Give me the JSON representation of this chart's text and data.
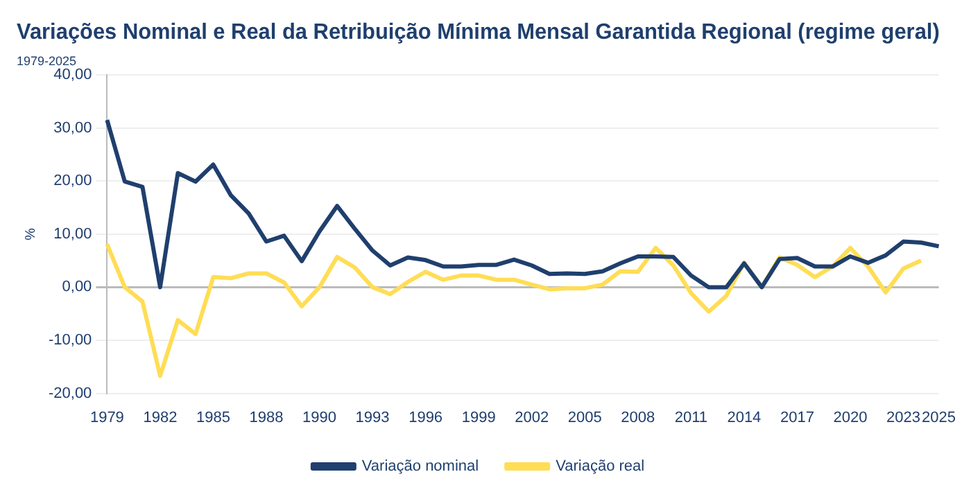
{
  "chart_data": {
    "type": "line",
    "title": "Variações Nominal e Real da Retribuição Mínima Mensal Garantida Regional (regime geral)",
    "subtitle": "1979-2025",
    "ylabel": "%",
    "categories": [
      "1979",
      null,
      null,
      "1982",
      null,
      null,
      "1985",
      null,
      null,
      "1988",
      null,
      null,
      "1990",
      null,
      null,
      "1993",
      null,
      null,
      "1996",
      null,
      null,
      "1999",
      null,
      null,
      "2002",
      null,
      null,
      "2005",
      null,
      null,
      "2008",
      null,
      null,
      "2011",
      null,
      null,
      "2014",
      null,
      null,
      "2017",
      null,
      null,
      "2020",
      null,
      null,
      "2023",
      null,
      "2025"
    ],
    "series": [
      {
        "name": "Variação nominal",
        "color": "#1f3f6e",
        "values": [
          31.5,
          19.9,
          18.9,
          0,
          21.5,
          19.9,
          23.1,
          17.3,
          13.9,
          8.6,
          9.7,
          4.9,
          10.5,
          15.3,
          11,
          6.9,
          4.1,
          5.6,
          5.1,
          3.9,
          3.9,
          4.2,
          4.2,
          5.2,
          4.1,
          2.5,
          2.6,
          2.5,
          3,
          4.5,
          5.8,
          5.8,
          5.7,
          2.2,
          0,
          0,
          4.5,
          0,
          5.3,
          5.5,
          3.9,
          3.9,
          5.8,
          4.6,
          6,
          8.6,
          8.4,
          7.7
        ]
      },
      {
        "name": "Variação real",
        "color": "#ffdd55",
        "values": [
          8.1,
          0,
          -2.7,
          -16.7,
          -6.2,
          -8.8,
          1.9,
          1.7,
          2.6,
          2.6,
          0.9,
          -3.6,
          0,
          5.7,
          3.7,
          0,
          -1.3,
          1,
          2.9,
          1.4,
          2.2,
          2.2,
          1.4,
          1.4,
          0.5,
          -0.4,
          -0.2,
          -0.2,
          0.5,
          3,
          2.9,
          7.4,
          4.1,
          -1.1,
          -4.6,
          -1.6,
          4.6,
          0,
          5.6,
          4.2,
          1.9,
          3.9,
          7.4,
          3.9,
          -1,
          3.5,
          5,
          null
        ]
      }
    ],
    "ylim": [
      -20,
      40
    ],
    "yticks": [
      {
        "value": -20,
        "label": "-20,00"
      },
      {
        "value": -10,
        "label": "-10,00"
      },
      {
        "value": 0,
        "label": "0,00"
      },
      {
        "value": 10,
        "label": "10,00"
      },
      {
        "value": 20,
        "label": "20,00"
      },
      {
        "value": 30,
        "label": "30,00"
      },
      {
        "value": 40,
        "label": "40,00"
      }
    ],
    "grid": "y",
    "legend": "bottom",
    "marker": "none",
    "line_style": "solid"
  }
}
